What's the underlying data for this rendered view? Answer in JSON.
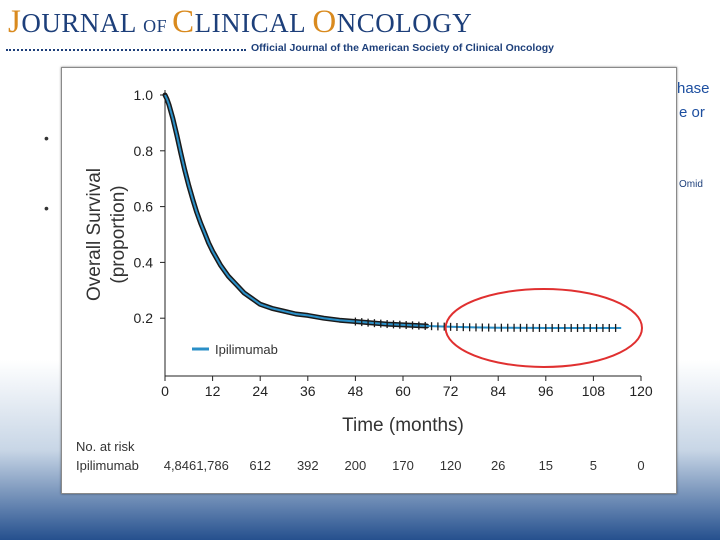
{
  "header": {
    "journal_title_J": "J",
    "journal_title_1": "OURNAL ",
    "journal_title_of": "OF ",
    "journal_title_C": "C",
    "journal_title_2": "LINICAL ",
    "journal_title_O": "O",
    "journal_title_3": "NCOLOGY",
    "subtitle": "Official Journal of the American Society of Clinical Oncology"
  },
  "background": {
    "fragment_hase": "hase",
    "fragment_e_or": "e or",
    "fragment_omid": "Omid",
    "bullets": [
      "•",
      "•"
    ]
  },
  "chart_data": {
    "type": "line",
    "title": "",
    "xlabel": "Time (months)",
    "ylabel_line1": "Overall Survival",
    "ylabel_line2": "(proportion)",
    "xlim": [
      0,
      120
    ],
    "ylim": [
      0,
      1.0
    ],
    "x_ticks": [
      0,
      12,
      24,
      36,
      48,
      60,
      72,
      84,
      96,
      108,
      120
    ],
    "x_tick_labels": [
      "0",
      "12",
      "24",
      "36",
      "48",
      "60",
      "72",
      "84",
      "96",
      "108",
      "120"
    ],
    "y_ticks": [
      0.2,
      0.4,
      0.6,
      0.8,
      1.0
    ],
    "y_tick_labels": [
      "0.2",
      "0.4",
      "0.6",
      "0.8",
      "1.0"
    ],
    "series": [
      {
        "name": "Ipilimumab",
        "color": "#2a8fc7",
        "x": [
          0,
          0.5,
          1,
          2,
          3,
          4,
          5,
          6,
          7,
          8,
          9,
          10,
          11,
          12,
          13,
          14,
          15,
          16,
          17,
          18,
          20,
          22,
          24,
          27,
          30,
          33,
          36,
          40,
          44,
          48,
          52,
          56,
          60,
          66,
          72,
          78,
          84,
          96,
          108,
          115
        ],
        "y": [
          1.0,
          0.985,
          0.965,
          0.915,
          0.855,
          0.79,
          0.73,
          0.675,
          0.625,
          0.58,
          0.54,
          0.505,
          0.47,
          0.44,
          0.415,
          0.39,
          0.37,
          0.35,
          0.335,
          0.32,
          0.29,
          0.27,
          0.25,
          0.235,
          0.225,
          0.215,
          0.21,
          0.2,
          0.193,
          0.188,
          0.183,
          0.179,
          0.176,
          0.172,
          0.169,
          0.167,
          0.166,
          0.165,
          0.165,
          0.165
        ]
      }
    ],
    "legend": {
      "position": "bottom-left",
      "entries": [
        "Ipilimumab"
      ]
    },
    "annotation": {
      "type": "ellipse",
      "color": "#e03030",
      "x_range": [
        72,
        120
      ],
      "y_center": 0.165,
      "description": "plateau highlight"
    },
    "risk_table": {
      "header": "No. at risk",
      "row_label": "Ipilimumab",
      "values": [
        "4,846",
        "1,786",
        "612",
        "392",
        "200",
        "170",
        "120",
        "26",
        "15",
        "5",
        "0"
      ]
    }
  }
}
